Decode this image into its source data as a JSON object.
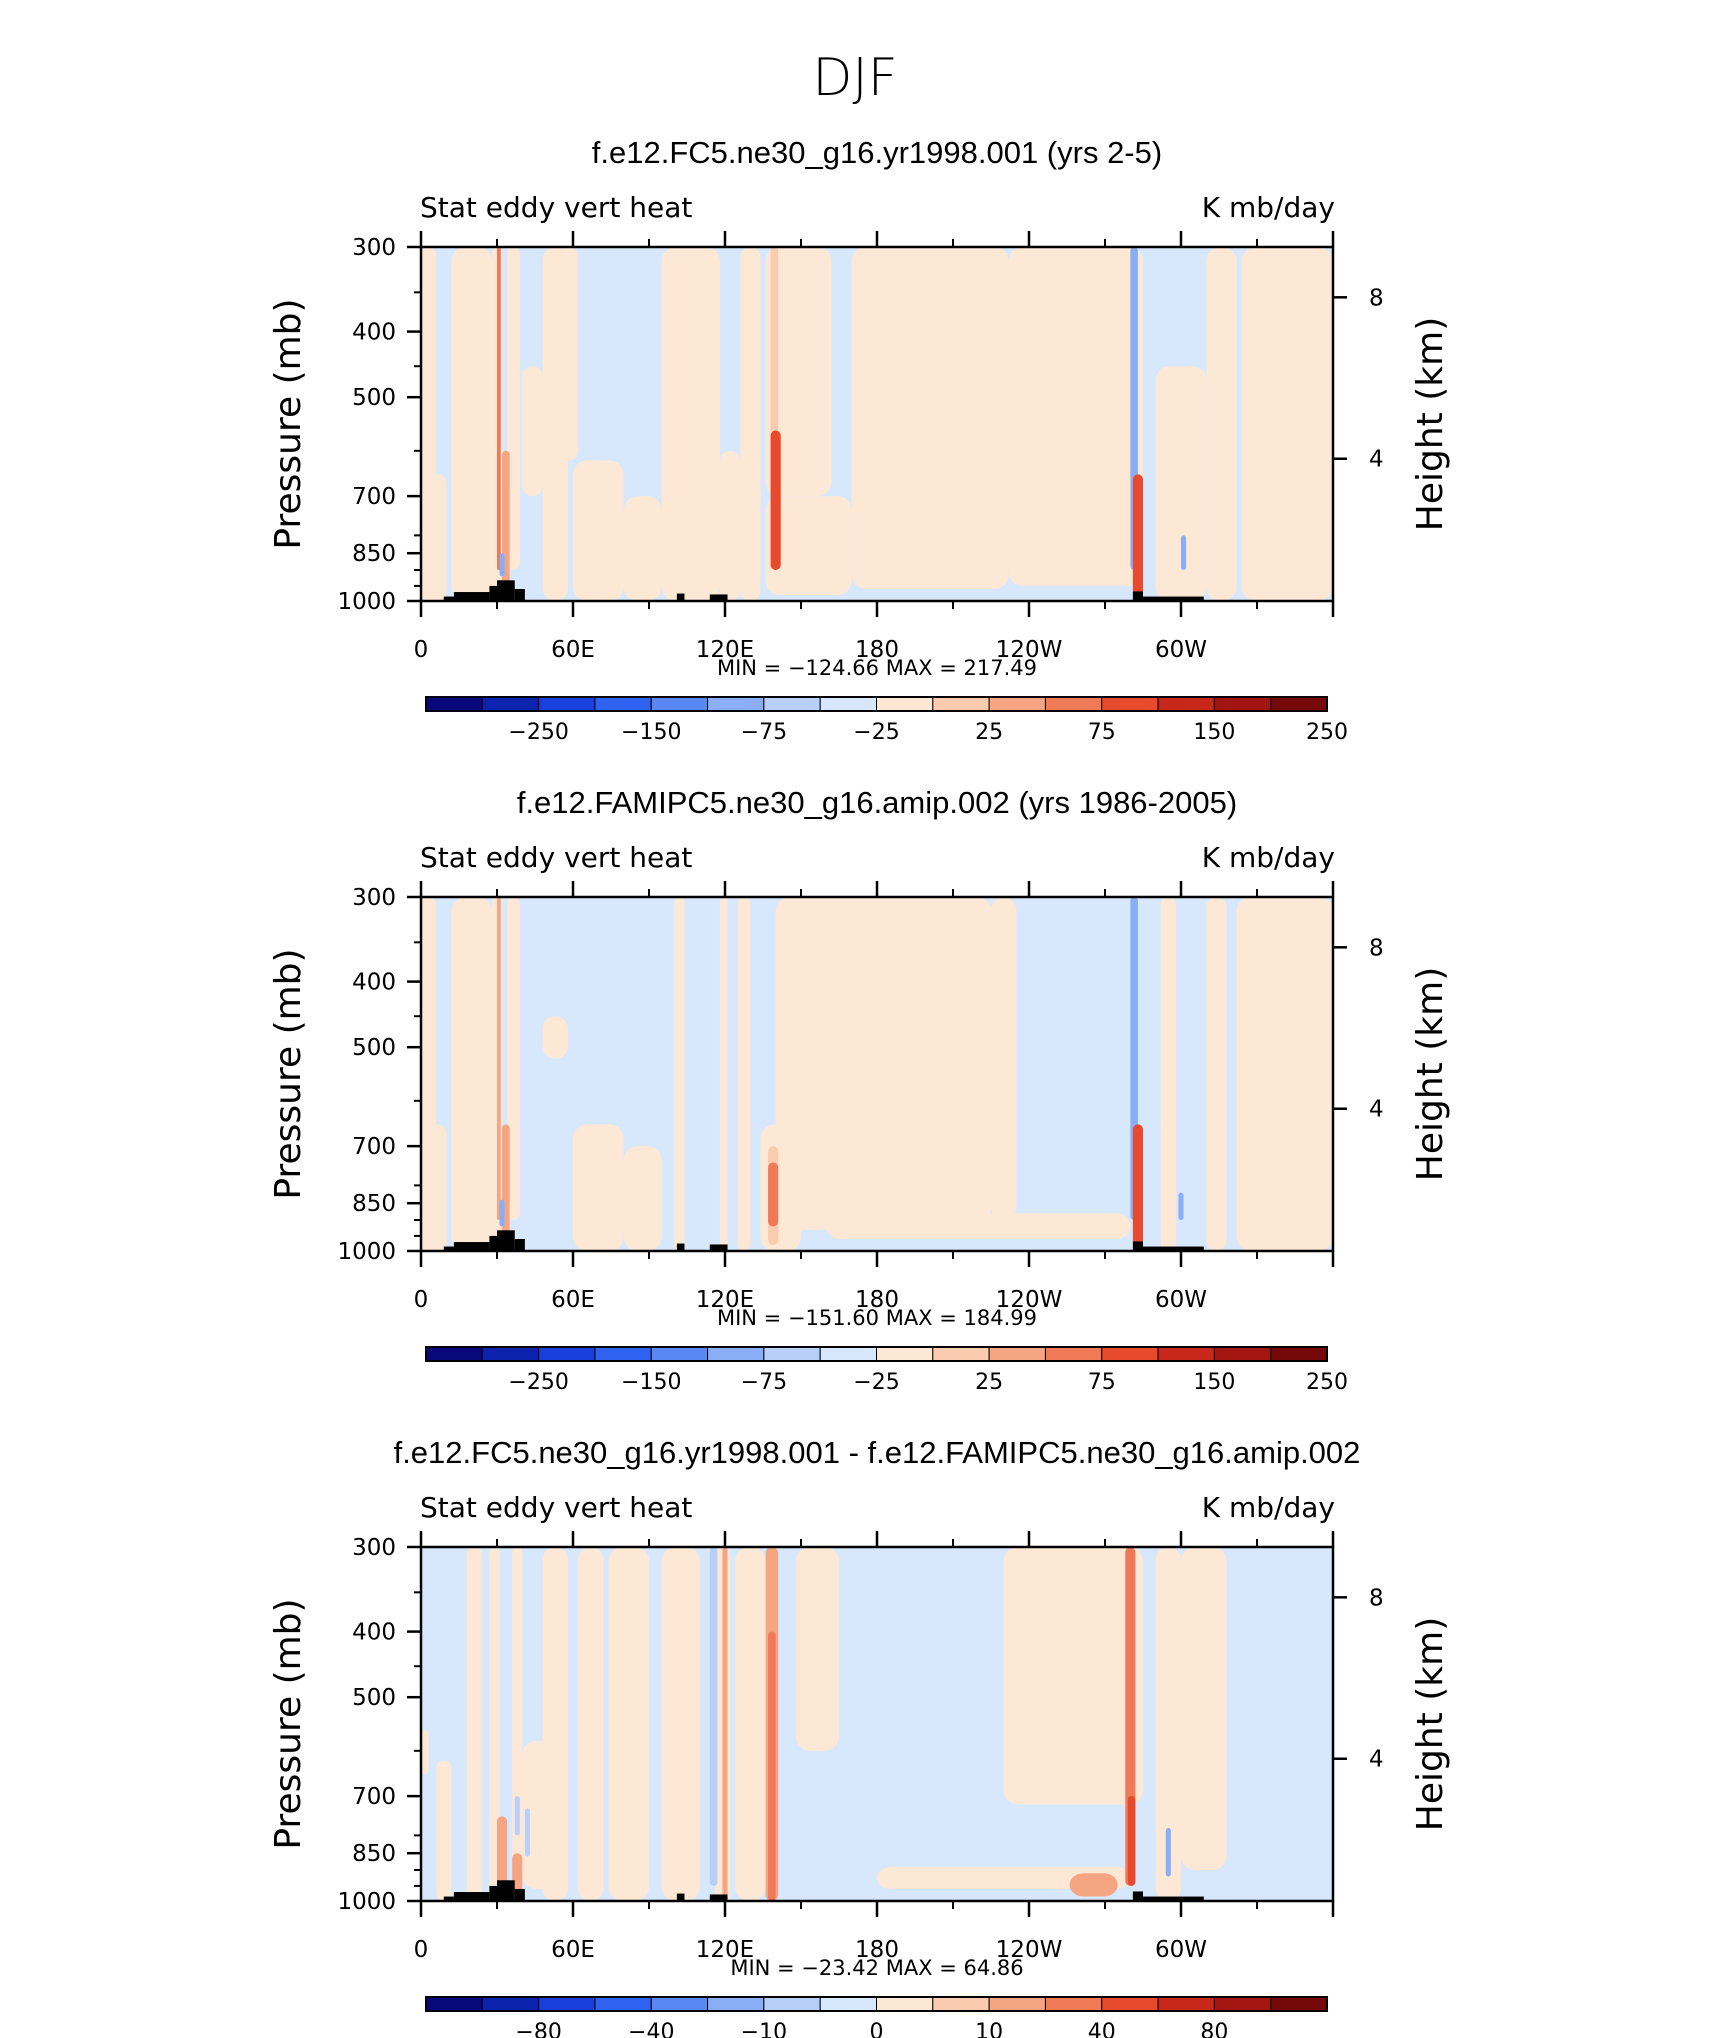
{
  "main_title": "DJF",
  "colors": {
    "palette": [
      "#08087a",
      "#0b23ad",
      "#1a40dc",
      "#2e62ef",
      "#5a88f2",
      "#8aaef5",
      "#b8cffa",
      "#d7e8fc",
      "#fde8d6",
      "#fbcbb0",
      "#f6a583",
      "#f07a58",
      "#e74a2c",
      "#c8281a",
      "#a31510",
      "#750808"
    ],
    "land": "#000000"
  },
  "chart_data": [
    {
      "type": "heatmap",
      "title": "f.e12.FC5.ne30_g16.yr1998.001 (yrs 2-5)",
      "left_string": "Stat eddy vert heat",
      "right_string": "K mb/day",
      "ylabel": "Pressure (mb)",
      "ylabel_right": "Height (km)",
      "y_ticks": [
        "300",
        "400",
        "500",
        "700",
        "850",
        "1000"
      ],
      "y_tick_values": [
        300,
        400,
        500,
        700,
        850,
        1000
      ],
      "y_right_ticks": [
        "8",
        "4"
      ],
      "x_ticks": [
        "0",
        "60E",
        "120E",
        "180",
        "120W",
        "60W"
      ],
      "x_tick_values": [
        0,
        60,
        120,
        180,
        240,
        300
      ],
      "xlim": [
        0,
        360
      ],
      "ylim": [
        1000,
        300
      ],
      "min_max": "MIN = −124.66   MAX = 217.49",
      "colorbar_labels": [
        "−250",
        "−150",
        "−75",
        "−25",
        "25",
        "75",
        "150",
        "250"
      ]
    },
    {
      "type": "heatmap",
      "title": "f.e12.FAMIPC5.ne30_g16.amip.002 (yrs 1986-2005)",
      "left_string": "Stat eddy vert heat",
      "right_string": "K mb/day",
      "ylabel": "Pressure (mb)",
      "ylabel_right": "Height (km)",
      "y_ticks": [
        "300",
        "400",
        "500",
        "700",
        "850",
        "1000"
      ],
      "y_tick_values": [
        300,
        400,
        500,
        700,
        850,
        1000
      ],
      "y_right_ticks": [
        "8",
        "4"
      ],
      "x_ticks": [
        "0",
        "60E",
        "120E",
        "180",
        "120W",
        "60W"
      ],
      "x_tick_values": [
        0,
        60,
        120,
        180,
        240,
        300
      ],
      "xlim": [
        0,
        360
      ],
      "ylim": [
        1000,
        300
      ],
      "min_max": "MIN = −151.60   MAX = 184.99",
      "colorbar_labels": [
        "−250",
        "−150",
        "−75",
        "−25",
        "25",
        "75",
        "150",
        "250"
      ]
    },
    {
      "type": "heatmap",
      "title": "f.e12.FC5.ne30_g16.yr1998.001 - f.e12.FAMIPC5.ne30_g16.amip.002",
      "left_string": "Stat eddy vert heat",
      "right_string": "K mb/day",
      "ylabel": "Pressure (mb)",
      "ylabel_right": "Height (km)",
      "y_ticks": [
        "300",
        "400",
        "500",
        "700",
        "850",
        "1000"
      ],
      "y_tick_values": [
        300,
        400,
        500,
        700,
        850,
        1000
      ],
      "y_right_ticks": [
        "8",
        "4"
      ],
      "x_ticks": [
        "0",
        "60E",
        "120E",
        "180",
        "120W",
        "60W"
      ],
      "x_tick_values": [
        0,
        60,
        120,
        180,
        240,
        300
      ],
      "xlim": [
        0,
        360
      ],
      "ylim": [
        1000,
        300
      ],
      "min_max": "MIN =  −23.42   MAX =   64.86",
      "colorbar_labels": [
        "−80",
        "−40",
        "−10",
        "0",
        "10",
        "40",
        "80"
      ]
    }
  ]
}
